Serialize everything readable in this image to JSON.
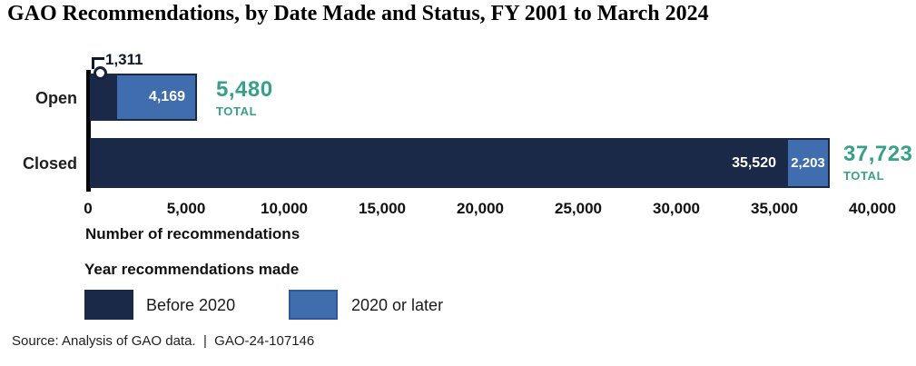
{
  "title": "GAO Recommendations, by Date Made and Status, FY 2001 to March 2024",
  "chart_data": {
    "type": "bar",
    "orientation": "horizontal",
    "stacked": true,
    "categories": [
      "Open",
      "Closed"
    ],
    "series": [
      {
        "name": "Before 2020",
        "color": "#1b2948",
        "values": [
          1311,
          35520
        ]
      },
      {
        "name": "2020 or later",
        "color": "#3f6dad",
        "values": [
          4169,
          2203
        ]
      }
    ],
    "totals": [
      5480,
      37723
    ],
    "xlabel": "Number of recommendations",
    "xlim": [
      0,
      40000
    ],
    "xticks": [
      "0",
      "5,000",
      "10,000",
      "15,000",
      "20,000",
      "25,000",
      "30,000",
      "35,000",
      "40,000"
    ],
    "legend_title": "Year recommendations made",
    "legend_position": "bottom",
    "grid": false
  },
  "labels": {
    "open": "Open",
    "closed": "Closed",
    "open_before": "1,311",
    "open_later": "4,169",
    "open_total": "5,480",
    "closed_before": "35,520",
    "closed_later": "2,203",
    "closed_total": "37,723",
    "total_caption": "TOTAL"
  },
  "source": "Source: Analysis of GAO data.  |  GAO-24-107146",
  "colors": {
    "navy": "#1b2948",
    "blue": "#3f6dad",
    "teal": "#37a08b",
    "axis": "#050608"
  }
}
